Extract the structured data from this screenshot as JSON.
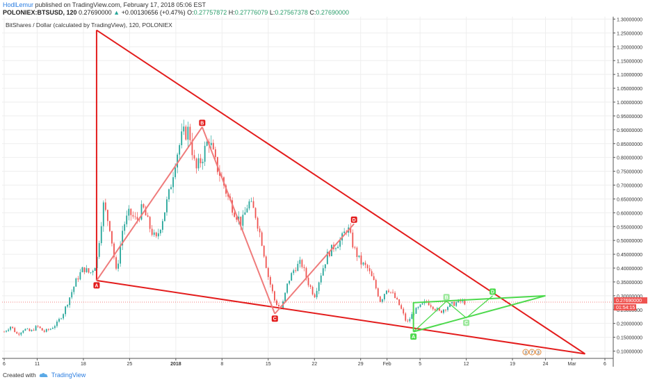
{
  "header": {
    "author": "HodlLemur",
    "published_text": "published on TradingView.com, February 17, 2018 05:06 EST",
    "symbol": "POLONIEX:BTSUSD, 120",
    "last": "0.27690000",
    "change": "+0.00130656 (+0.47%)",
    "o_label": "O:",
    "o_value": "0.27757872",
    "h_label": "H:",
    "h_value": "0.27776079",
    "l_label": "L:",
    "l_value": "0.27567378",
    "c_label": "C:",
    "c_value": "0.27690000"
  },
  "legend": "BitShares / Dollar (calculated by TradingView), 120, POLONIEX",
  "footer": {
    "created_with": "Created with",
    "brand": "TradingView"
  },
  "colors": {
    "up": "#26a69a",
    "down": "#ef5350",
    "wedge": "#e31c1c",
    "pattern_red": "#ef7b7b",
    "pattern_green": "#4cd94c",
    "price_label_bg": "#ef5350",
    "grid": "#eeeeee"
  },
  "chart_data": {
    "type": "candlestick",
    "y_axis": {
      "min": 0.1,
      "max": 1.3,
      "step": 0.05,
      "tick_labels": [
        "1.30000000",
        "1.25000000",
        "1.20000000",
        "1.15000000",
        "1.10000000",
        "1.05000000",
        "1.00000000",
        "0.95000000",
        "0.90000000",
        "0.85000000",
        "0.80000000",
        "0.75000000",
        "0.70000000",
        "0.65000000",
        "0.60000000",
        "0.55000000",
        "0.50000000",
        "0.45000000",
        "0.40000000",
        "0.35000000",
        "0.30000000",
        "0.25000000",
        "0.20000000",
        "0.15000000",
        "0.10000000"
      ]
    },
    "x_axis": {
      "tick_labels": [
        "6",
        "11",
        "18",
        "25",
        "2018",
        "8",
        "15",
        "22",
        "29",
        "Feb",
        "5",
        "12",
        "19",
        "24",
        "Mar",
        "6"
      ],
      "tick_day_index": [
        0,
        5,
        12,
        19,
        26,
        33,
        40,
        47,
        54,
        58,
        63,
        70,
        77,
        82,
        86,
        91
      ]
    },
    "current_price": {
      "value": 0.2769,
      "label": "0.27690000",
      "countdown": "01:54:15"
    },
    "price_path": [
      [
        0,
        0.17
      ],
      [
        1,
        0.19
      ],
      [
        2,
        0.16
      ],
      [
        3,
        0.18
      ],
      [
        4,
        0.17
      ],
      [
        5,
        0.19
      ],
      [
        6,
        0.17
      ],
      [
        7,
        0.18
      ],
      [
        8,
        0.2
      ],
      [
        9,
        0.24
      ],
      [
        10,
        0.3
      ],
      [
        11,
        0.36
      ],
      [
        12,
        0.4
      ],
      [
        13,
        0.38
      ],
      [
        14,
        0.42
      ],
      [
        15,
        0.63
      ],
      [
        16,
        0.55
      ],
      [
        17,
        0.38
      ],
      [
        18,
        0.55
      ],
      [
        19,
        0.6
      ],
      [
        20,
        0.57
      ],
      [
        21,
        0.62
      ],
      [
        22,
        0.55
      ],
      [
        23,
        0.5
      ],
      [
        24,
        0.58
      ],
      [
        25,
        0.67
      ],
      [
        26,
        0.8
      ],
      [
        27,
        0.88
      ],
      [
        28,
        0.9
      ],
      [
        29,
        0.75
      ],
      [
        30,
        0.8
      ],
      [
        31,
        0.87
      ],
      [
        32,
        0.78
      ],
      [
        33,
        0.72
      ],
      [
        34,
        0.65
      ],
      [
        35,
        0.6
      ],
      [
        36,
        0.56
      ],
      [
        37,
        0.64
      ],
      [
        38,
        0.6
      ],
      [
        39,
        0.5
      ],
      [
        40,
        0.37
      ],
      [
        41,
        0.28
      ],
      [
        42,
        0.25
      ],
      [
        43,
        0.35
      ],
      [
        44,
        0.4
      ],
      [
        45,
        0.42
      ],
      [
        46,
        0.35
      ],
      [
        47,
        0.3
      ],
      [
        48,
        0.38
      ],
      [
        49,
        0.45
      ],
      [
        50,
        0.48
      ],
      [
        51,
        0.5
      ],
      [
        52,
        0.55
      ],
      [
        53,
        0.47
      ],
      [
        54,
        0.42
      ],
      [
        55,
        0.4
      ],
      [
        56,
        0.35
      ],
      [
        57,
        0.28
      ],
      [
        58,
        0.33
      ],
      [
        59,
        0.3
      ],
      [
        60,
        0.26
      ],
      [
        61,
        0.2
      ],
      [
        62,
        0.24
      ],
      [
        63,
        0.26
      ],
      [
        64,
        0.28
      ],
      [
        65,
        0.26
      ],
      [
        66,
        0.24
      ],
      [
        67,
        0.26
      ],
      [
        68,
        0.27
      ],
      [
        69,
        0.28
      ],
      [
        70,
        0.275
      ]
    ],
    "drawings": {
      "wedge_upper": [
        [
          14,
          1.26
        ],
        [
          88,
          0.09
        ]
      ],
      "wedge_left": [
        [
          14,
          1.26
        ],
        [
          14,
          0.355
        ]
      ],
      "wedge_lower": [
        [
          14,
          0.355
        ],
        [
          88,
          0.09
        ]
      ],
      "pattern_red": {
        "points": [
          [
            14,
            0.355
          ],
          [
            30,
            0.91
          ],
          [
            41,
            0.235
          ],
          [
            53,
            0.56
          ]
        ],
        "labels": [
          "A",
          "B",
          "C",
          "D"
        ]
      },
      "pattern_green": {
        "points": [
          [
            62,
            0.17
          ],
          [
            67,
            0.28
          ],
          [
            70,
            0.22
          ],
          [
            74,
            0.3
          ]
        ],
        "labels": [
          "A",
          "B",
          "C",
          "D"
        ],
        "wedge": [
          [
            62,
            0.17
          ],
          [
            62,
            0.275
          ],
          [
            82,
            0.3
          ],
          [
            62,
            0.17
          ]
        ]
      }
    },
    "annotations": [
      "3",
      "7",
      "3"
    ]
  }
}
